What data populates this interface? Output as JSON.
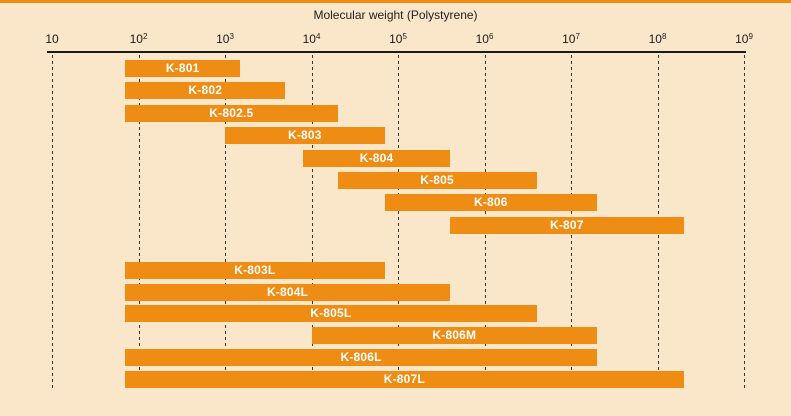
{
  "chart_data": {
    "type": "bar",
    "variant": "horizontal-log-range-bars",
    "title": "Molecular weight (Polystyrene)",
    "xscale": "log",
    "xlim": [
      10,
      1000000000
    ],
    "x_ticks": [
      {
        "base": "10",
        "exp": ""
      },
      {
        "base": "10",
        "exp": "2"
      },
      {
        "base": "10",
        "exp": "3"
      },
      {
        "base": "10",
        "exp": "4"
      },
      {
        "base": "10",
        "exp": "5"
      },
      {
        "base": "10",
        "exp": "6"
      },
      {
        "base": "10",
        "exp": "7"
      },
      {
        "base": "10",
        "exp": "8"
      },
      {
        "base": "10",
        "exp": "9"
      }
    ],
    "grid": "dashed-vertical-per-decade",
    "legend": "none",
    "colors": {
      "bar": "#ee8c14",
      "background": "#fae6c8",
      "accent_band": "#ee8c14",
      "axis": "#1a1a1a",
      "bar_label_text": "#ffffff"
    },
    "groups": [
      {
        "name": "standard-columns",
        "rows": [
          {
            "label": "K-801",
            "min": 70,
            "max": 1500
          },
          {
            "label": "K-802",
            "min": 70,
            "max": 5000
          },
          {
            "label": "K-802.5",
            "min": 70,
            "max": 20000
          },
          {
            "label": "K-803",
            "min": 1000,
            "max": 70000
          },
          {
            "label": "K-804",
            "min": 8000,
            "max": 400000
          },
          {
            "label": "K-805",
            "min": 20000,
            "max": 4000000
          },
          {
            "label": "K-806",
            "min": 70000,
            "max": 20000000
          },
          {
            "label": "K-807",
            "min": 400000,
            "max": 200000000
          }
        ]
      },
      {
        "name": "linear-mixed-columns",
        "rows": [
          {
            "label": "K-803L",
            "min": 70,
            "max": 70000
          },
          {
            "label": "K-804L",
            "min": 70,
            "max": 400000
          },
          {
            "label": "K-805L",
            "min": 70,
            "max": 4000000
          },
          {
            "label": "K-806M",
            "min": 10000,
            "max": 20000000
          },
          {
            "label": "K-806L",
            "min": 70,
            "max": 20000000
          },
          {
            "label": "K-807L",
            "min": 70,
            "max": 200000000
          }
        ]
      }
    ]
  }
}
